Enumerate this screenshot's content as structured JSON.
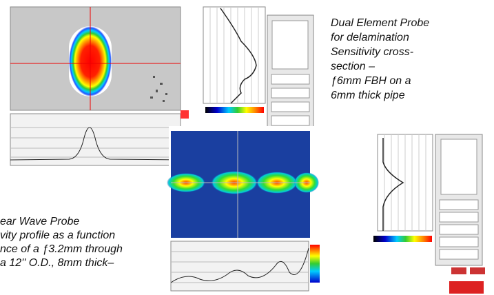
{
  "captions": [
    {
      "lines": [
        "Dual Element Probe",
        "for delamination",
        "Sensitivity cross-",
        "section –",
        "ƒ6mm FBH on a",
        "6mm thick pipe"
      ]
    },
    {
      "lines": [
        "ear Wave Probe",
        "vity profile as a function",
        "nce of a ƒ3.2mm through",
        "a 12'' O.D., 8mm thick–"
      ]
    }
  ]
}
